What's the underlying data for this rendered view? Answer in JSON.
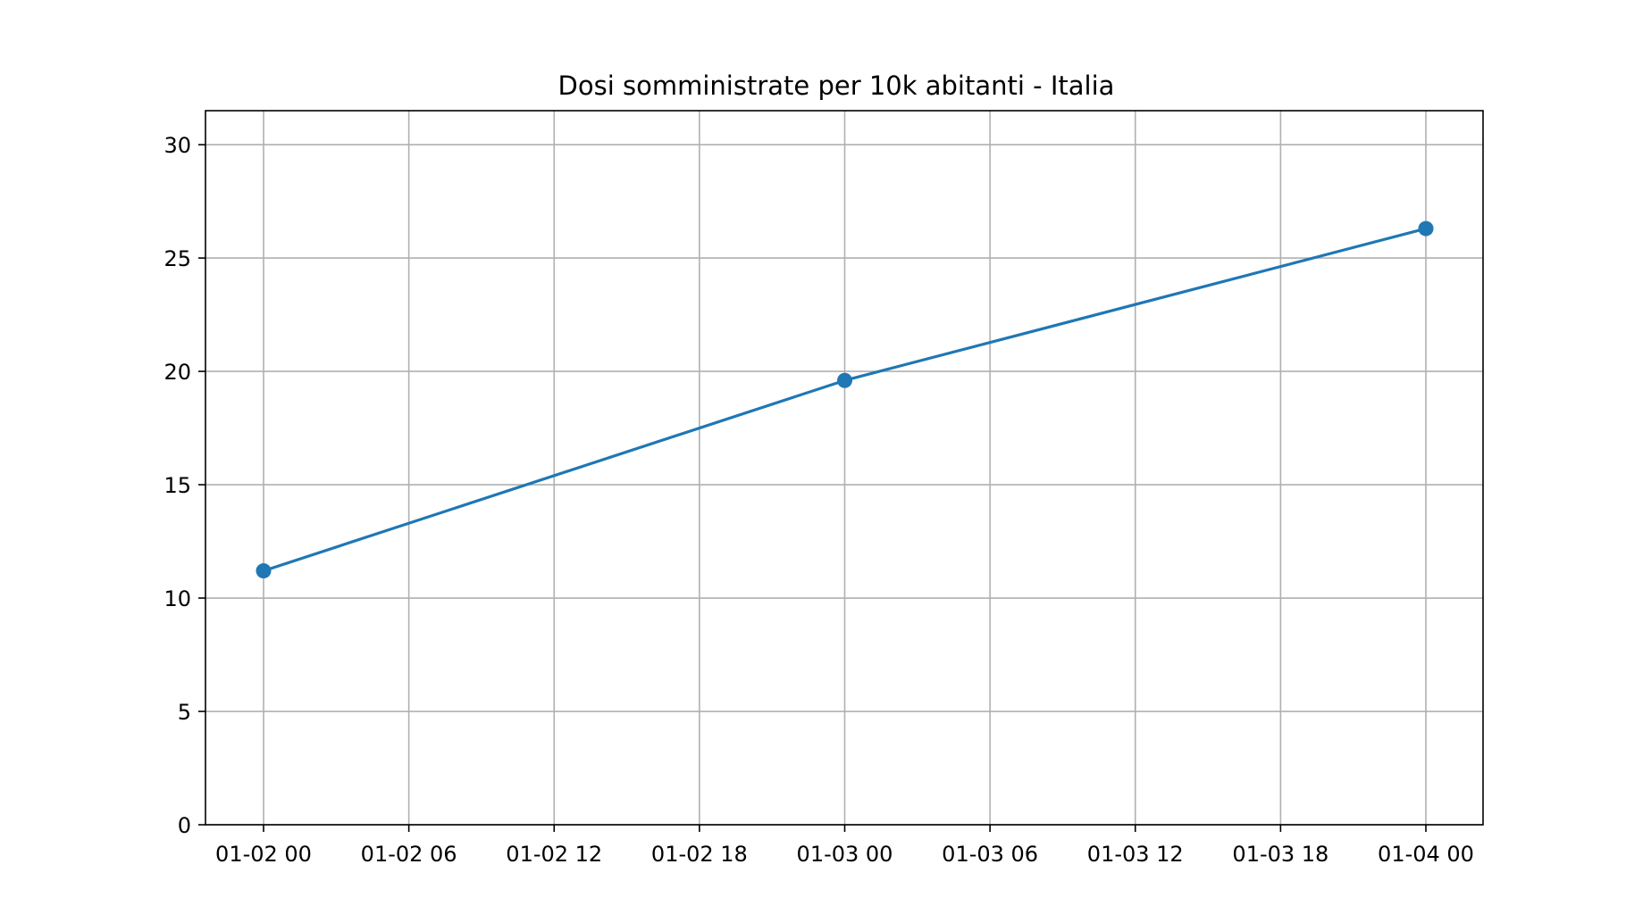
{
  "chart_data": {
    "type": "line",
    "title": "Dosi somministrate per 10k abitanti - Italia",
    "xlabel": "",
    "ylabel": "",
    "x_tick_labels": [
      "01-02 00",
      "01-02 06",
      "01-02 12",
      "01-02 18",
      "01-03 00",
      "01-03 06",
      "01-03 12",
      "01-03 18",
      "01-04 00"
    ],
    "y_tick_labels": [
      "0",
      "5",
      "10",
      "15",
      "20",
      "25",
      "30"
    ],
    "ylim": [
      0,
      31.5
    ],
    "grid": true,
    "series": [
      {
        "color": "#1f77b4",
        "marker": "circle",
        "x": [
          "01-02 00",
          "01-03 00",
          "01-04 00"
        ],
        "y": [
          11.2,
          19.6,
          26.3
        ]
      }
    ]
  }
}
